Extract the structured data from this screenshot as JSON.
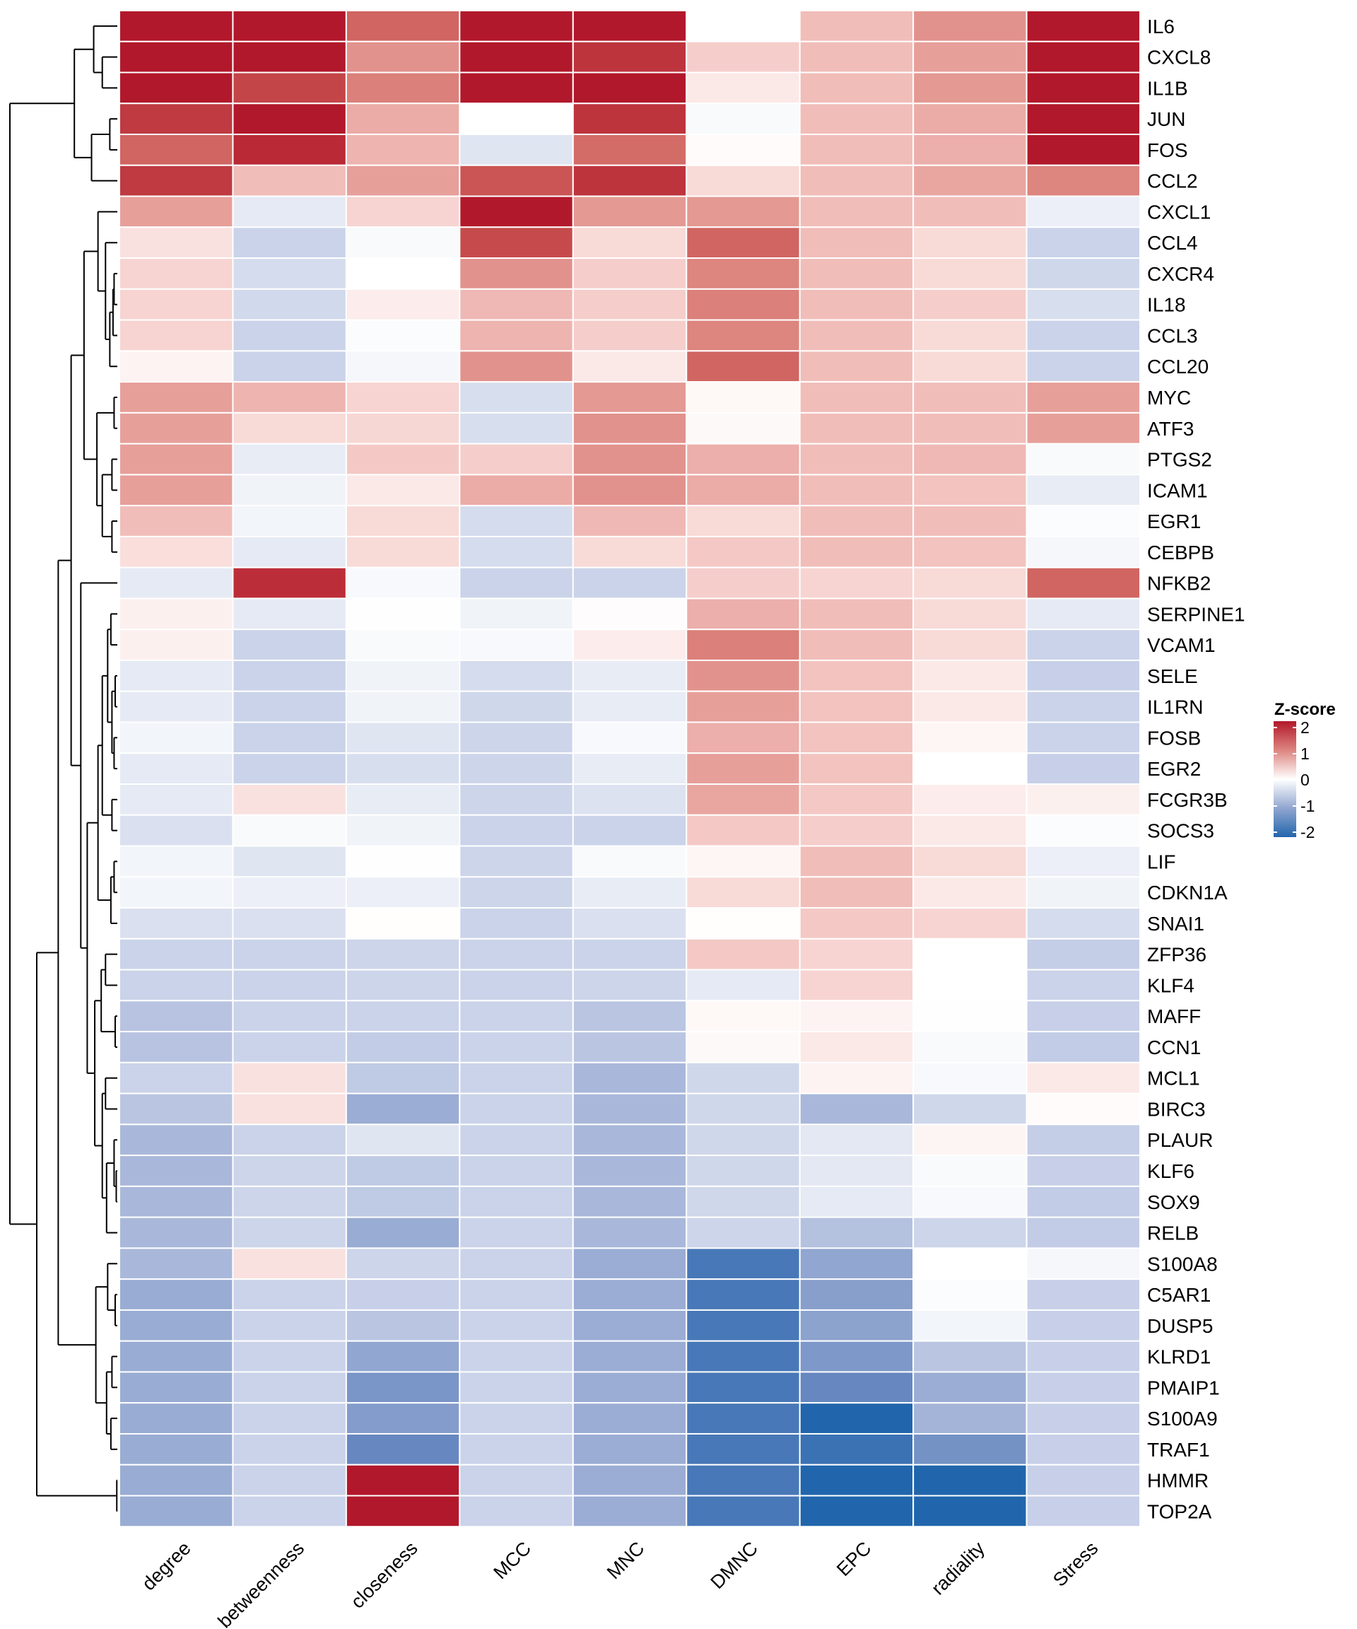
{
  "chart_data": {
    "type": "heatmap",
    "title": "",
    "xlabel": "",
    "ylabel": "",
    "columns": [
      "degree",
      "betweenness",
      "closeness",
      "MCC",
      "MNC",
      "DMNC",
      "EPC",
      "radiality",
      "Stress"
    ],
    "rows": [
      "IL6",
      "CXCL8",
      "IL1B",
      "JUN",
      "FOS",
      "CCL2",
      "CXCL1",
      "CCL4",
      "CXCR4",
      "IL18",
      "CCL3",
      "CCL20",
      "MYC",
      "ATF3",
      "PTGS2",
      "ICAM1",
      "EGR1",
      "CEBPB",
      "NFKB2",
      "SERPINE1",
      "VCAM1",
      "SELE",
      "IL1RN",
      "FOSB",
      "EGR2",
      "FCGR3B",
      "SOCS3",
      "LIF",
      "CDKN1A",
      "SNAI1",
      "ZFP36",
      "KLF4",
      "MAFF",
      "CCN1",
      "MCL1",
      "BIRC3",
      "PLAUR",
      "KLF6",
      "SOX9",
      "RELB",
      "S100A8",
      "C5AR1",
      "DUSP5",
      "KLRD1",
      "PMAIP1",
      "S100A9",
      "TRAF1",
      "HMMR",
      "TOP2A"
    ],
    "values": [
      [
        2,
        2,
        1.3,
        2,
        2,
        0,
        0.5,
        0.9,
        2
      ],
      [
        2,
        2,
        0.9,
        2,
        1.75,
        0.35,
        0.5,
        0.8,
        2
      ],
      [
        2,
        1.6,
        1.05,
        2,
        2,
        0.15,
        0.5,
        0.85,
        2
      ],
      [
        1.7,
        2,
        0.7,
        0,
        1.75,
        -0.05,
        0.5,
        0.7,
        2
      ],
      [
        1.3,
        1.85,
        0.6,
        -0.25,
        1.25,
        0.03,
        0.5,
        0.65,
        2
      ],
      [
        1.7,
        0.5,
        0.8,
        1.45,
        1.75,
        0.25,
        0.5,
        0.75,
        1.0
      ],
      [
        0.8,
        -0.2,
        0.3,
        2,
        0.85,
        0.85,
        0.5,
        0.5,
        -0.15
      ],
      [
        0.2,
        -0.45,
        -0.05,
        1.55,
        0.25,
        1.3,
        0.5,
        0.25,
        -0.45
      ],
      [
        0.3,
        -0.35,
        0,
        0.9,
        0.35,
        1.0,
        0.5,
        0.25,
        -0.4
      ],
      [
        0.3,
        -0.38,
        0.12,
        0.55,
        0.35,
        1.05,
        0.5,
        0.35,
        -0.33
      ],
      [
        0.3,
        -0.45,
        -0.03,
        0.6,
        0.35,
        1.0,
        0.5,
        0.25,
        -0.45
      ],
      [
        0.08,
        -0.45,
        -0.08,
        0.9,
        0.15,
        1.3,
        0.5,
        0.25,
        -0.45
      ],
      [
        0.8,
        0.6,
        0.3,
        -0.33,
        0.85,
        0.05,
        0.5,
        0.5,
        0.8
      ],
      [
        0.8,
        0.25,
        0.28,
        -0.33,
        0.9,
        0.04,
        0.5,
        0.5,
        0.8
      ],
      [
        0.8,
        -0.18,
        0.4,
        0.35,
        0.9,
        0.65,
        0.5,
        0.55,
        -0.05
      ],
      [
        0.8,
        -0.12,
        0.15,
        0.7,
        0.9,
        0.7,
        0.5,
        0.45,
        -0.18
      ],
      [
        0.5,
        -0.1,
        0.25,
        -0.35,
        0.55,
        0.25,
        0.5,
        0.5,
        -0.03
      ],
      [
        0.22,
        -0.2,
        0.25,
        -0.35,
        0.25,
        0.4,
        0.5,
        0.45,
        -0.08
      ],
      [
        -0.2,
        1.8,
        -0.06,
        -0.45,
        -0.45,
        0.35,
        0.3,
        0.25,
        1.3
      ],
      [
        0.1,
        -0.2,
        -0.01,
        -0.12,
        0.02,
        0.65,
        0.5,
        0.25,
        -0.2
      ],
      [
        0.1,
        -0.45,
        -0.05,
        -0.06,
        0.12,
        1.05,
        0.5,
        0.25,
        -0.45
      ],
      [
        -0.2,
        -0.45,
        -0.12,
        -0.35,
        -0.18,
        0.9,
        0.45,
        0.15,
        -0.48
      ],
      [
        -0.2,
        -0.45,
        -0.12,
        -0.4,
        -0.18,
        0.8,
        0.45,
        0.15,
        -0.45
      ],
      [
        -0.1,
        -0.45,
        -0.25,
        -0.42,
        -0.06,
        0.65,
        0.45,
        0.06,
        -0.45
      ],
      [
        -0.2,
        -0.45,
        -0.33,
        -0.42,
        -0.18,
        0.8,
        0.45,
        0,
        -0.48
      ],
      [
        -0.2,
        0.2,
        -0.18,
        -0.42,
        -0.28,
        0.75,
        0.4,
        0.12,
        0.1
      ],
      [
        -0.3,
        -0.05,
        -0.12,
        -0.45,
        -0.45,
        0.4,
        0.35,
        0.15,
        -0.03
      ],
      [
        -0.1,
        -0.25,
        -0.01,
        -0.42,
        -0.05,
        0.06,
        0.5,
        0.25,
        -0.15
      ],
      [
        -0.1,
        -0.15,
        -0.15,
        -0.42,
        -0.18,
        0.25,
        0.5,
        0.15,
        -0.12
      ],
      [
        -0.3,
        -0.3,
        0.01,
        -0.45,
        -0.3,
        0.01,
        0.4,
        0.3,
        -0.35
      ],
      [
        -0.45,
        -0.45,
        -0.42,
        -0.45,
        -0.45,
        0.4,
        0.3,
        0,
        -0.5
      ],
      [
        -0.45,
        -0.45,
        -0.42,
        -0.45,
        -0.42,
        -0.2,
        0.3,
        0,
        -0.45
      ],
      [
        -0.62,
        -0.45,
        -0.45,
        -0.45,
        -0.6,
        0.05,
        0.08,
        -0.01,
        -0.48
      ],
      [
        -0.62,
        -0.45,
        -0.52,
        -0.45,
        -0.6,
        0.04,
        0.15,
        -0.05,
        -0.52
      ],
      [
        -0.45,
        0.2,
        -0.55,
        -0.45,
        -0.75,
        -0.4,
        0.08,
        -0.06,
        0.15
      ],
      [
        -0.6,
        0.2,
        -0.9,
        -0.45,
        -0.75,
        -0.4,
        -0.75,
        -0.4,
        0.03
      ],
      [
        -0.75,
        -0.45,
        -0.25,
        -0.45,
        -0.75,
        -0.4,
        -0.22,
        0.07,
        -0.5
      ],
      [
        -0.75,
        -0.42,
        -0.55,
        -0.45,
        -0.75,
        -0.4,
        -0.22,
        -0.05,
        -0.48
      ],
      [
        -0.75,
        -0.42,
        -0.55,
        -0.45,
        -0.75,
        -0.4,
        -0.2,
        -0.06,
        -0.52
      ],
      [
        -0.75,
        -0.42,
        -0.92,
        -0.45,
        -0.75,
        -0.42,
        -0.65,
        -0.42,
        -0.52
      ],
      [
        -0.75,
        0.2,
        -0.42,
        -0.45,
        -0.9,
        -1.7,
        -1.0,
        0,
        -0.08
      ],
      [
        -0.92,
        -0.45,
        -0.48,
        -0.45,
        -0.9,
        -1.7,
        -1.1,
        -0.03,
        -0.48
      ],
      [
        -0.92,
        -0.45,
        -0.6,
        -0.45,
        -0.9,
        -1.7,
        -1.05,
        -0.1,
        -0.48
      ],
      [
        -0.92,
        -0.45,
        -1.0,
        -0.45,
        -0.9,
        -1.7,
        -1.2,
        -0.6,
        -0.48
      ],
      [
        -0.92,
        -0.45,
        -1.25,
        -0.45,
        -0.9,
        -1.7,
        -1.45,
        -0.9,
        -0.48
      ],
      [
        -0.92,
        -0.45,
        -1.15,
        -0.45,
        -0.9,
        -1.7,
        -2,
        -0.8,
        -0.48
      ],
      [
        -0.92,
        -0.45,
        -1.45,
        -0.45,
        -0.9,
        -1.7,
        -1.8,
        -1.3,
        -0.48
      ],
      [
        -0.92,
        -0.45,
        2,
        -0.45,
        -0.9,
        -1.7,
        -2,
        -2,
        -0.48
      ],
      [
        -0.92,
        -0.45,
        2,
        -0.45,
        -0.9,
        -1.7,
        -2,
        -2,
        -0.48
      ]
    ],
    "color_scale": {
      "min": -2,
      "mid": 0,
      "max": 2,
      "low_color": "#2166AC",
      "mid_color": "#FFFFFF",
      "high_color": "#B2182B"
    },
    "legend": {
      "title": "Z-score",
      "ticks": [
        "2",
        "1",
        "0",
        "-1",
        "-2"
      ],
      "tick_values": [
        2,
        1,
        0,
        -1,
        -2
      ],
      "placement": "right"
    },
    "row_dendrogram": {
      "note": "merge heights are relative distances (root = 1)",
      "tree": [
        [
          [
            "IL6",
            [
              "CXCL8",
              "IL1B",
              0.14
            ],
            0.22
          ],
          [
            [
              "JUN",
              "FOS",
              0.07
            ],
            "CCL2",
            0.24
          ],
          0.4
        ],
        [
          [
            [
              [
                [
                  "CXCL1",
                  [
                    "CCL4",
                    [
                      [
                        [
                          "CXCR4",
                          "IL18",
                          0.03
                        ],
                        "CCL3",
                        0.04
                      ],
                      "CCL20",
                      0.07
                    ],
                    0.11
                  ],
                  0.18
                ],
                [
                  [
                    "MYC",
                    "ATF3",
                    0.03
                  ],
                  [
                    [
                      "PTGS2",
                      "ICAM1",
                      0.05
                    ],
                    [
                      "EGR1",
                      "CEBPB",
                      0.05
                    ],
                    0.14
                  ],
                  0.19
                ],
                0.31
              ],
              [
                "NFKB2",
                [
                  [
                    [
                      [
                        [
                          "SERPINE1",
                          "VCAM1",
                          0.06
                        ],
                        [
                          [
                            "SELE",
                            "IL1RN",
                            0.02
                          ],
                          [
                            "FOSB",
                            "EGR2",
                            0.03
                          ],
                          0.05
                        ],
                        0.09
                      ],
                      [
                        "FCGR3B",
                        "SOCS3",
                        0.05
                      ],
                      0.14
                    ],
                    [
                      [
                        "LIF",
                        "CDKN1A",
                        0.03
                      ],
                      "SNAI1",
                      0.06
                    ],
                    0.18
                  ],
                  [
                    [
                      [
                        "ZFP36",
                        "KLF4",
                        0.11
                      ],
                      [
                        "MAFF",
                        "CCN1",
                        0.02
                      ],
                      0.15
                    ],
                    [
                      [
                        "MCL1",
                        "BIRC3",
                        0.11
                      ],
                      [
                        [
                          "PLAUR",
                          [
                            "KLF6",
                            "SOX9",
                            0.01
                          ],
                          0.03
                        ],
                        "RELB",
                        0.1
                      ],
                      0.14
                    ],
                    0.21
                  ],
                  0.28
                ],
                0.34
              ],
              0.43
            ],
            [
              [
                "S100A8",
                [
                  "C5AR1",
                  "DUSP5",
                  0.02
                ],
                0.09
              ],
              [
                [
                  "KLRD1",
                  "PMAIP1",
                  0.05
                ],
                [
                  "S100A9",
                  "TRAF1",
                  0.06
                ],
                0.1
              ],
              0.2
            ],
            0.55
          ],
          [
            "HMMR",
            "TOP2A",
            0.005
          ],
          0.75
        ],
        1.0
      ]
    }
  }
}
